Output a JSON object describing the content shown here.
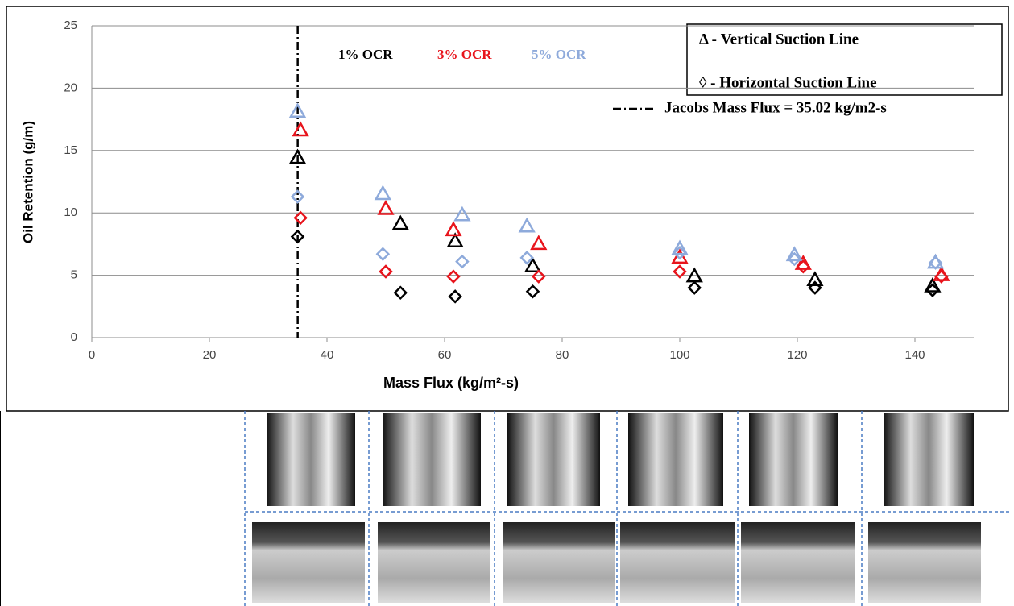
{
  "chart_data": {
    "type": "scatter",
    "xlabel": "Mass Flux (kg/m²-s)",
    "ylabel": "Oil Retention (g/m)",
    "xlim": [
      0,
      150
    ],
    "ylim": [
      0,
      25
    ],
    "xticks": [
      0,
      20,
      40,
      60,
      80,
      100,
      120,
      140
    ],
    "yticks": [
      0,
      5,
      10,
      15,
      20,
      25
    ],
    "grid": true,
    "ocr_labels": [
      {
        "label": "1% OCR",
        "color": "#000000"
      },
      {
        "label": "3% OCR",
        "color": "#e8141c"
      },
      {
        "label": "5% OCR",
        "color": "#8eaadb"
      }
    ],
    "legend": [
      {
        "label": "Δ - Vertical Suction Line",
        "marker": "triangle"
      },
      {
        "label": "◊ - Horizontal Suction Line",
        "marker": "diamond"
      }
    ],
    "vline": {
      "x": 35.02,
      "label": "Jacobs Mass Flux = 35.02 kg/m2-s"
    },
    "series": [
      {
        "marker": "triangle",
        "color": "#000000",
        "x": [
          35,
          52.5,
          61.8,
          75,
          102.5,
          123,
          143
        ],
        "values": [
          14.4,
          9.1,
          7.7,
          5.7,
          4.9,
          4.6,
          4.1
        ]
      },
      {
        "marker": "triangle",
        "color": "#e8141c",
        "x": [
          35.5,
          50,
          61.5,
          76,
          100,
          121,
          144.5
        ],
        "values": [
          16.6,
          10.3,
          8.6,
          7.5,
          6.4,
          5.9,
          5.0
        ]
      },
      {
        "marker": "triangle",
        "color": "#8eaadb",
        "x": [
          35,
          49.5,
          63,
          74,
          100,
          119.5,
          143.5
        ],
        "values": [
          18.1,
          11.5,
          9.8,
          8.9,
          7.1,
          6.6,
          6.0
        ]
      },
      {
        "marker": "diamond",
        "color": "#000000",
        "x": [
          35,
          52.5,
          61.8,
          75,
          102.5,
          123,
          143
        ],
        "values": [
          8.1,
          3.6,
          3.3,
          3.7,
          4.0,
          4.0,
          3.8
        ]
      },
      {
        "marker": "diamond",
        "color": "#e8141c",
        "x": [
          35.5,
          50,
          61.5,
          76,
          100,
          121,
          144.5
        ],
        "values": [
          9.6,
          5.3,
          4.9,
          4.9,
          5.3,
          5.7,
          4.9
        ]
      },
      {
        "marker": "diamond",
        "color": "#8eaadb",
        "x": [
          35,
          49.5,
          63,
          74,
          100,
          119.5,
          143.5
        ],
        "values": [
          11.3,
          6.7,
          6.1,
          6.4,
          6.8,
          6.3,
          6.0
        ]
      }
    ]
  }
}
